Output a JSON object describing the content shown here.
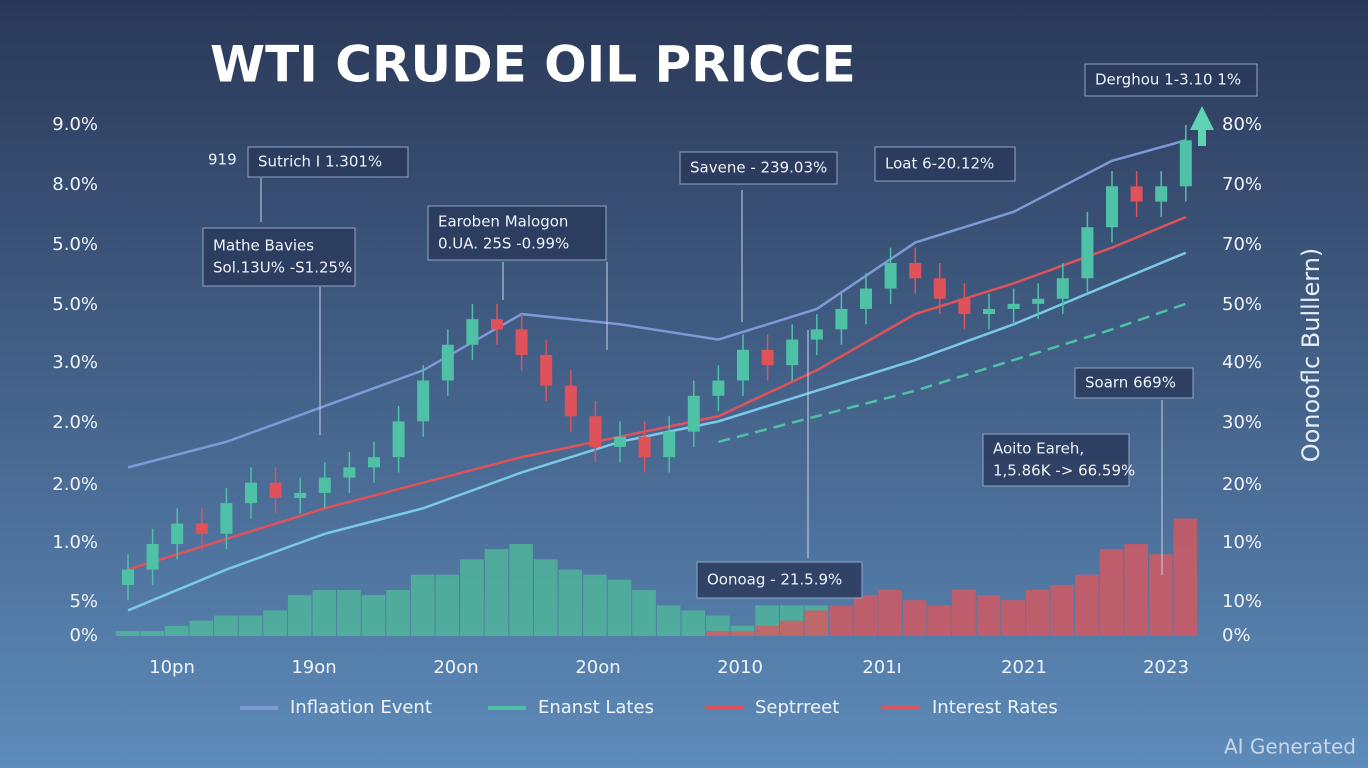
{
  "chart_data": {
    "type": "candlestick",
    "title": "WTI CRUDE OIL PRICCE",
    "side_label": "Oonooflc Bulllern)",
    "watermark": "AI Generated",
    "y_labels": [
      "9.0%",
      "8.0%",
      "5.0%",
      "5.0%",
      "3.0%",
      "2.0%",
      "2.0%",
      "1.0%",
      "5%",
      "0%"
    ],
    "y2_labels": [
      "80%",
      "70%",
      "70%",
      "50%",
      "40%",
      "30%",
      "20%",
      "10%",
      "10%",
      "0%"
    ],
    "x_labels": [
      "10pn",
      "19on",
      "20on",
      "20on",
      "2010",
      "201ı",
      "2021",
      "2023"
    ],
    "ylim": [
      0,
      100
    ],
    "up_color": "#4fc1a6",
    "down_color": "#e0525a",
    "open": [
      10,
      13,
      18,
      22,
      20,
      26,
      30,
      27,
      28,
      31,
      33,
      35,
      42,
      50,
      57,
      62,
      60,
      55,
      49,
      43,
      37,
      39,
      35,
      40,
      47,
      50,
      56,
      53,
      58,
      60,
      64,
      68,
      73,
      70,
      66,
      63,
      64,
      65,
      66,
      70,
      80,
      88,
      85,
      88
    ],
    "high": [
      16,
      21,
      25,
      25,
      29,
      33,
      33,
      31,
      34,
      36,
      38,
      45,
      53,
      60,
      65,
      65,
      63,
      58,
      52,
      46,
      42,
      42,
      43,
      50,
      53,
      59,
      59,
      61,
      63,
      67,
      71,
      76,
      76,
      73,
      69,
      67,
      68,
      69,
      73,
      83,
      91,
      91,
      91,
      100
    ],
    "low": [
      7,
      10,
      15,
      17,
      17,
      23,
      24,
      24,
      25,
      28,
      30,
      32,
      39,
      47,
      54,
      57,
      52,
      46,
      40,
      34,
      34,
      32,
      32,
      37,
      44,
      47,
      50,
      50,
      55,
      57,
      61,
      65,
      67,
      63,
      60,
      60,
      61,
      62,
      63,
      67,
      77,
      82,
      82,
      85
    ],
    "close": [
      13,
      18,
      22,
      20,
      26,
      30,
      27,
      28,
      31,
      33,
      35,
      42,
      50,
      57,
      62,
      60,
      55,
      49,
      43,
      37,
      39,
      35,
      40,
      47,
      50,
      56,
      53,
      58,
      60,
      64,
      68,
      73,
      70,
      66,
      63,
      64,
      65,
      66,
      70,
      80,
      88,
      85,
      88,
      97
    ],
    "line_x": [
      0,
      4,
      8,
      12,
      16,
      20,
      24,
      28,
      32,
      36,
      40,
      43
    ],
    "series": [
      {
        "name": "Inflaation Event",
        "color": "#7d9ad6",
        "values": [
          33,
          38,
          45,
          52,
          63,
          61,
          58,
          64,
          77,
          83,
          93,
          97
        ]
      },
      {
        "color": "#7cc8e8",
        "values": [
          5,
          13,
          20,
          25,
          32,
          38,
          42,
          48,
          54,
          61,
          69,
          75
        ]
      },
      {
        "name": "Enanst Lates",
        "color": "#4fc1a6",
        "dashed": true,
        "values": [
          null,
          null,
          null,
          null,
          null,
          null,
          38,
          43,
          48,
          54,
          60,
          65
        ]
      },
      {
        "name": "Septrreet",
        "color": "#e0525a",
        "values": [
          13,
          19,
          25,
          30,
          35,
          39,
          43,
          52,
          63,
          69,
          76,
          82
        ]
      }
    ],
    "volume": [
      {
        "color": "#4fb89a",
        "values": [
          1,
          1,
          2,
          3,
          4,
          4,
          5,
          8,
          9,
          9,
          8,
          9,
          12,
          12,
          15,
          17,
          18,
          15,
          13,
          12,
          11,
          9,
          6,
          5,
          4,
          2,
          6,
          6,
          6,
          null,
          null,
          null,
          null,
          null,
          null,
          null,
          null,
          null,
          null,
          null,
          null,
          null,
          null,
          null
        ]
      },
      {
        "name": "Interest Rates",
        "color": "#d9575e",
        "values": [
          null,
          null,
          null,
          null,
          null,
          null,
          null,
          null,
          null,
          null,
          null,
          null,
          null,
          null,
          null,
          null,
          null,
          null,
          null,
          null,
          null,
          null,
          null,
          null,
          1,
          1,
          2,
          3,
          5,
          6,
          8,
          9,
          7,
          6,
          9,
          8,
          7,
          9,
          10,
          12,
          17,
          18,
          16,
          23
        ]
      }
    ],
    "annotations": [
      {
        "lines": [
          "919"
        ]
      },
      {
        "lines": [
          "Sutrich I 1.301%"
        ]
      },
      {
        "lines": [
          "Mathe Bavies",
          "Sol.13U% -S1.25%"
        ]
      },
      {
        "lines": [
          "Earoben Malogon",
          "0.UA. 25S -0.99%"
        ]
      },
      {
        "lines": [
          "Savene - 239.03%"
        ]
      },
      {
        "lines": [
          "Loat 6-20.12%"
        ]
      },
      {
        "lines": [
          "Derghou 1-3.10 1%"
        ]
      },
      {
        "lines": [
          "Soarn 669%"
        ]
      },
      {
        "lines": [
          "Aoito Eareh,",
          "1,5.86K -> 66.59%"
        ]
      },
      {
        "lines": [
          "Oonoag - 21.5.9%"
        ]
      }
    ]
  }
}
